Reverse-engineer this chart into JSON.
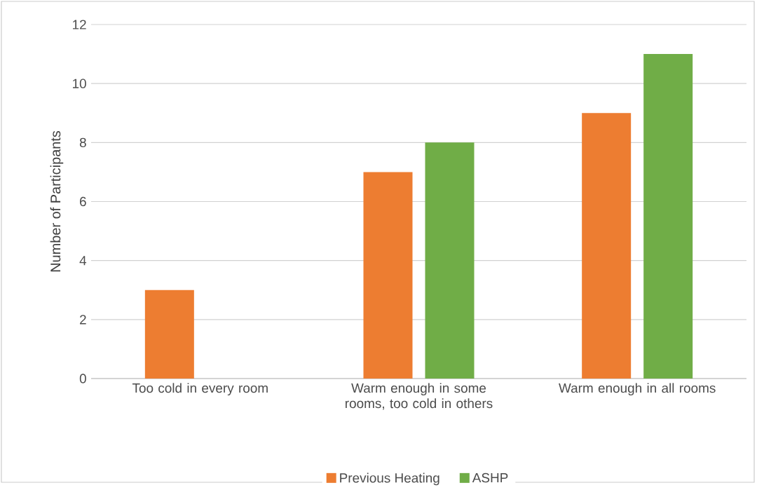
{
  "chart_data": {
    "type": "bar",
    "ylabel": "Number of Participants",
    "categories": [
      "Too cold in every room",
      "Warm enough in some rooms, too cold in others",
      "Warm enough in all rooms"
    ],
    "series": [
      {
        "name": "Previous Heating",
        "color": "#ed7d31",
        "values": [
          3,
          7,
          9
        ]
      },
      {
        "name": "ASHP",
        "color": "#70ad47",
        "values": [
          0,
          8,
          11
        ]
      }
    ],
    "ylim": [
      0,
      12
    ],
    "yticks": [
      0,
      2,
      4,
      6,
      8,
      10,
      12
    ],
    "grid": "y",
    "legend": "bottom"
  }
}
